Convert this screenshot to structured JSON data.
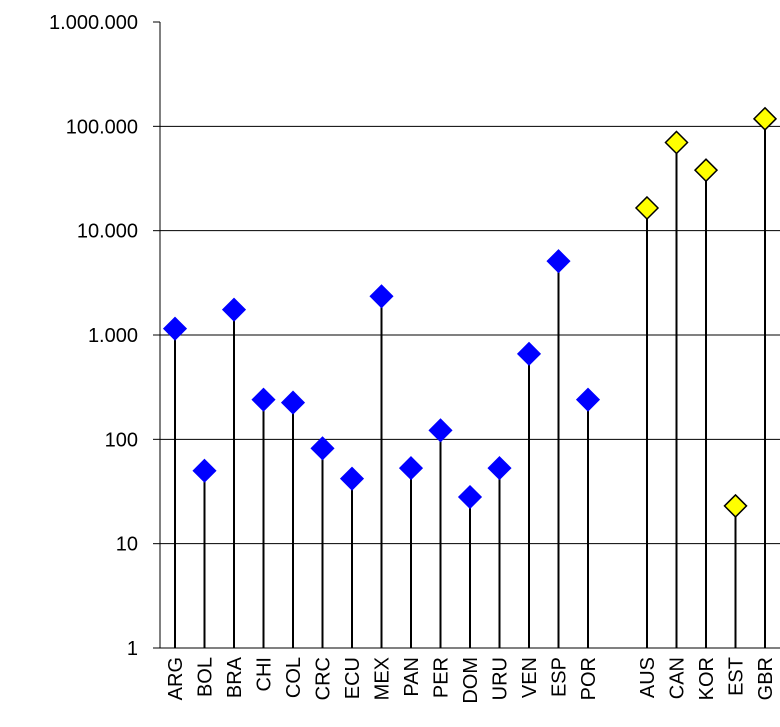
{
  "chart_data": {
    "type": "scatter",
    "subtype": "dot-plot-with-drop-lines",
    "scale": "log10",
    "ylim": [
      1,
      1000000
    ],
    "y_ticks": [
      {
        "value": 1,
        "label": "1"
      },
      {
        "value": 10,
        "label": "10"
      },
      {
        "value": 100,
        "label": "100"
      },
      {
        "value": 1000,
        "label": "1.000"
      },
      {
        "value": 10000,
        "label": "10.000"
      },
      {
        "value": 100000,
        "label": "100.000"
      },
      {
        "value": 1000000,
        "label": "1.000.000"
      }
    ],
    "grid": true,
    "categories": [
      "ARG",
      "BOL",
      "BRA",
      "CHI",
      "COL",
      "CRC",
      "ECU",
      "MEX",
      "PAN",
      "PER",
      "DOM",
      "URU",
      "VEN",
      "ESP",
      "POR",
      "",
      "AUS",
      "CAN",
      "KOR",
      "EST",
      "GBR"
    ],
    "series": [
      {
        "color": "#0000FF",
        "marker": "diamond",
        "points": [
          {
            "category": "ARG",
            "value": 1150
          },
          {
            "category": "BOL",
            "value": 50
          },
          {
            "category": "BRA",
            "value": 1750
          },
          {
            "category": "CHI",
            "value": 240
          },
          {
            "category": "COL",
            "value": 225
          },
          {
            "category": "CRC",
            "value": 82
          },
          {
            "category": "ECU",
            "value": 42
          },
          {
            "category": "MEX",
            "value": 2350
          },
          {
            "category": "PAN",
            "value": 53
          },
          {
            "category": "PER",
            "value": 122
          },
          {
            "category": "DOM",
            "value": 28
          },
          {
            "category": "URU",
            "value": 53
          },
          {
            "category": "VEN",
            "value": 660
          },
          {
            "category": "ESP",
            "value": 5100
          },
          {
            "category": "POR",
            "value": 240
          }
        ]
      },
      {
        "color": "#FFFF00",
        "marker": "diamond",
        "points": [
          {
            "category": "AUS",
            "value": 16500
          },
          {
            "category": "CAN",
            "value": 70000
          },
          {
            "category": "KOR",
            "value": 38000
          },
          {
            "category": "EST",
            "value": 23
          },
          {
            "category": "GBR",
            "value": 118000
          }
        ]
      }
    ]
  }
}
